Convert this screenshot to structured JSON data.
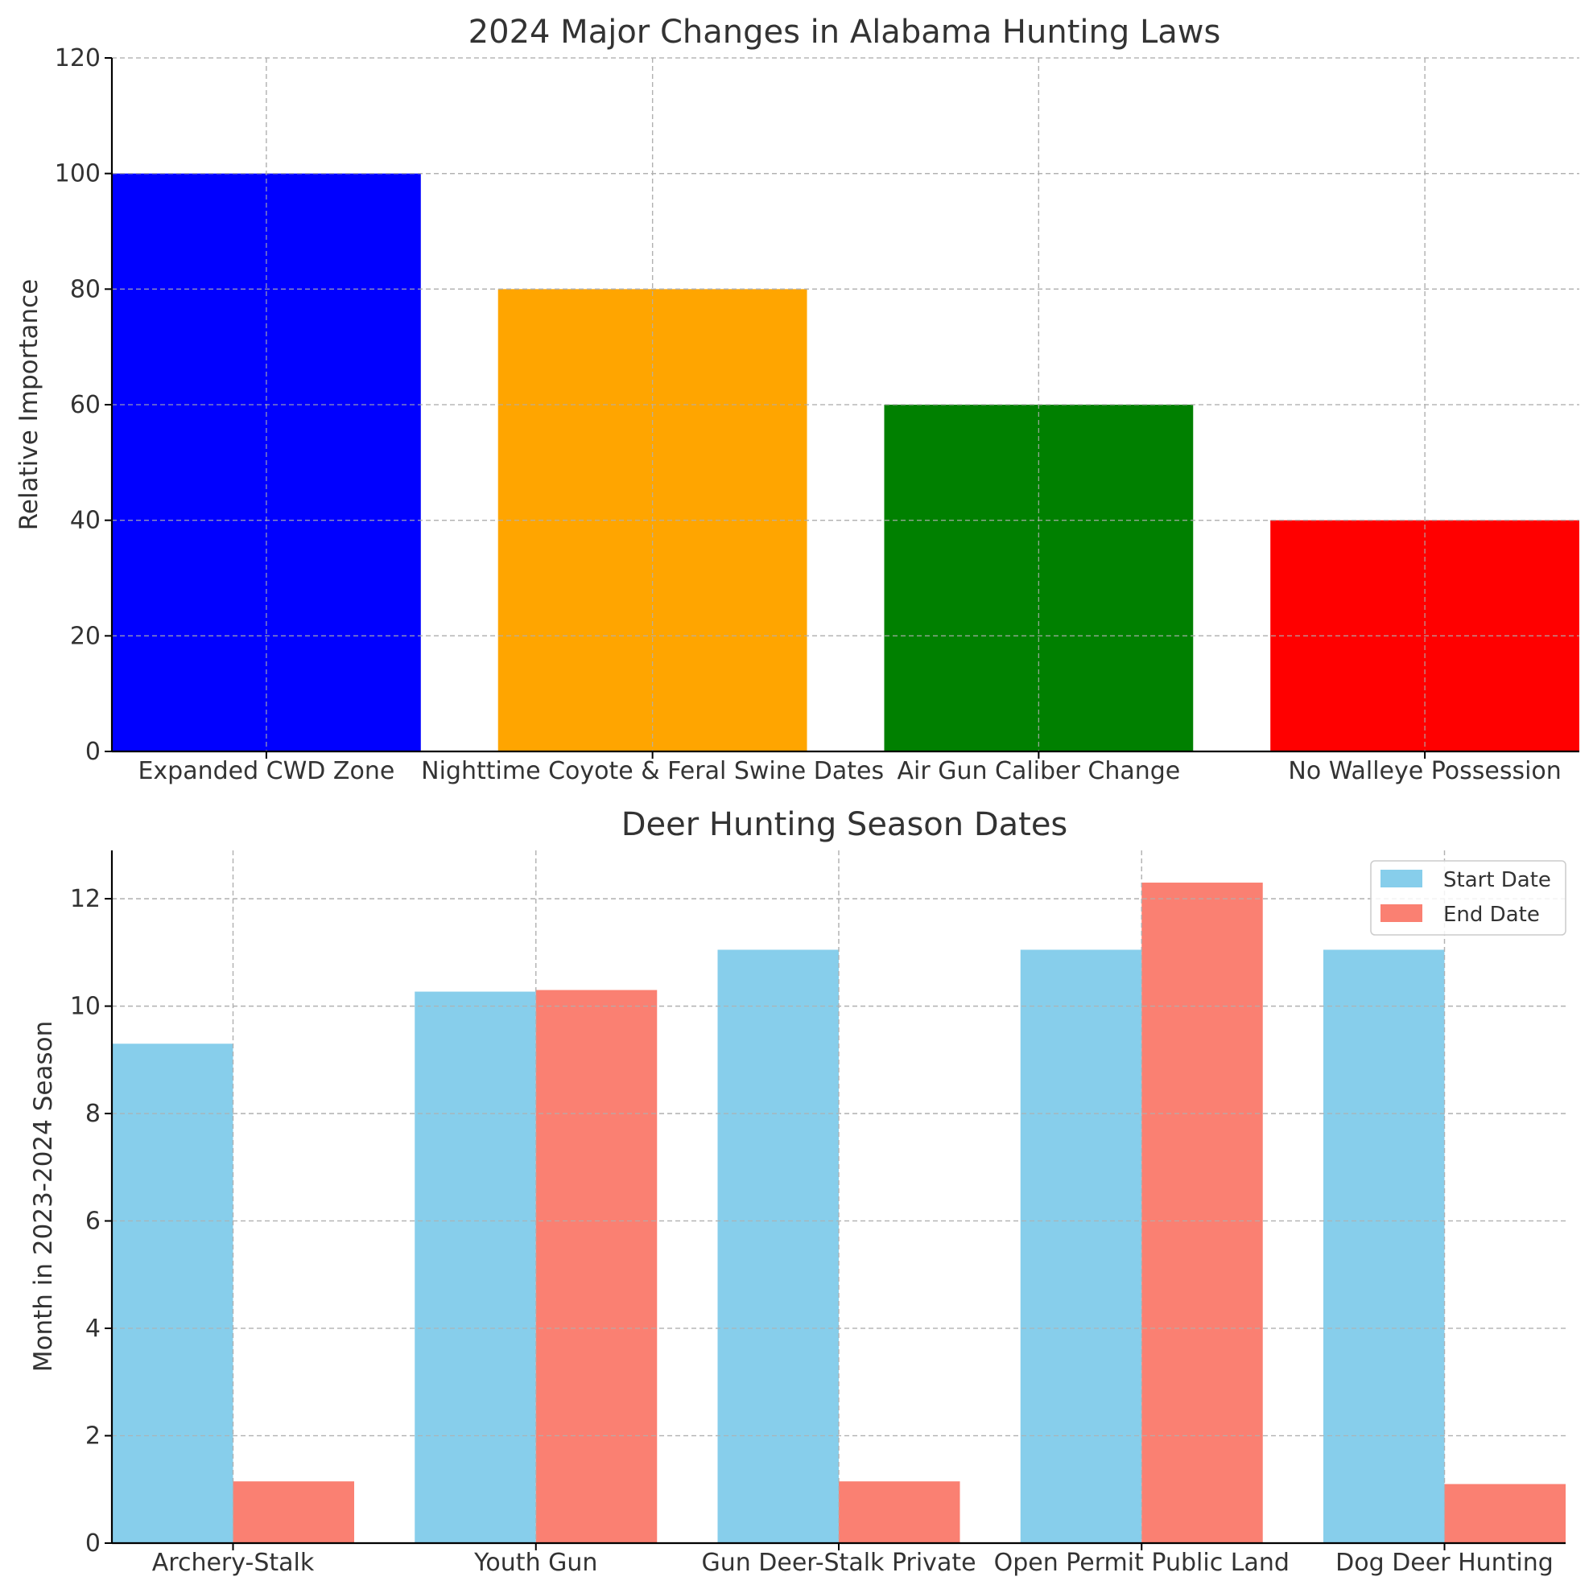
{
  "chart_data": [
    {
      "type": "bar",
      "title": "2024 Major Changes in Alabama Hunting Laws",
      "xlabel": "",
      "ylabel": "Relative Importance",
      "categories": [
        "Expanded CWD Zone",
        "Nighttime Coyote & Feral Swine Dates",
        "Air Gun Caliber Change",
        "No Walleye Possession"
      ],
      "values": [
        100,
        80,
        60,
        40
      ],
      "colors": [
        "#0000ff",
        "#ffa500",
        "#008000",
        "#ff0000"
      ],
      "ylim": [
        0,
        120
      ],
      "yticks": [
        0,
        20,
        40,
        60,
        80,
        100,
        120
      ],
      "grid": true
    },
    {
      "type": "bar",
      "title": "Deer Hunting Season Dates",
      "xlabel": "",
      "ylabel": "Month in 2023-2024 Season",
      "categories": [
        "Archery-Stalk",
        "Youth Gun",
        "Gun Deer-Stalk Private",
        "Open Permit Public Land",
        "Dog Deer Hunting"
      ],
      "series": [
        {
          "name": "Start Date",
          "color": "#87ceeb",
          "values": [
            9.3,
            10.27,
            11.05,
            11.05,
            11.05
          ]
        },
        {
          "name": "End Date",
          "color": "#fa8072",
          "values": [
            1.15,
            10.3,
            1.15,
            12.3,
            1.1
          ]
        }
      ],
      "ylim": [
        0,
        12.9
      ],
      "yticks": [
        0,
        2,
        4,
        6,
        8,
        10,
        12
      ],
      "legend": "top-right",
      "grid": true
    }
  ]
}
